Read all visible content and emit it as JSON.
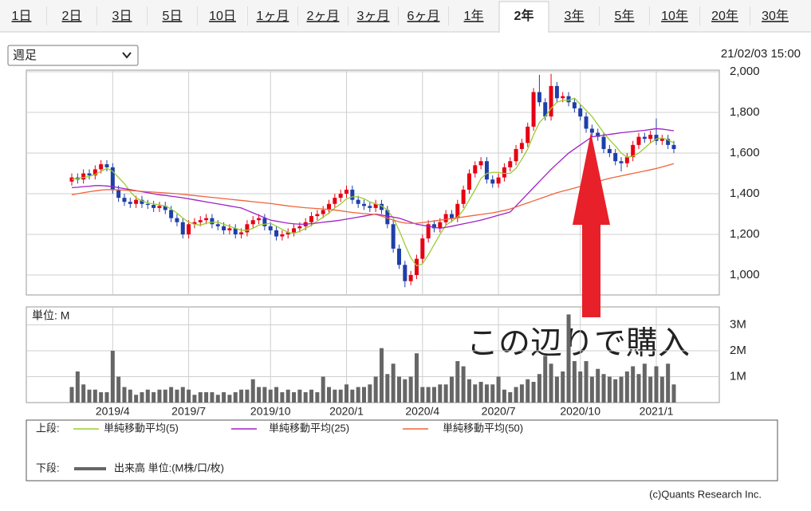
{
  "tabs": [
    "1日",
    "2日",
    "3日",
    "5日",
    "10日",
    "1ヶ月",
    "2ヶ月",
    "3ヶ月",
    "6ヶ月",
    "1年",
    "2年",
    "3年",
    "5年",
    "10年",
    "20年",
    "30年"
  ],
  "selected_tab": 10,
  "visited_tabs": [
    3
  ],
  "dropdown": "週足",
  "timestamp": "21/02/03 15:00",
  "copyright": "(c)Quants Research Inc.",
  "chart_data": [
    {
      "type": "candlestick",
      "legend_label": "上段:",
      "annotation": "この辺りで購入",
      "annotation_color": "#e8202a",
      "up_color": "#e60012",
      "down_color": "#1e3fa8",
      "open": [
        1460,
        1480,
        1470,
        1500,
        1490,
        1520,
        1545,
        1530,
        1420,
        1380,
        1360,
        1350,
        1370,
        1350,
        1345,
        1330,
        1340,
        1320,
        1280,
        1260,
        1200,
        1250,
        1260,
        1270,
        1280,
        1250,
        1240,
        1220,
        1230,
        1200,
        1210,
        1250,
        1270,
        1280,
        1240,
        1220,
        1190,
        1200,
        1210,
        1230,
        1240,
        1260,
        1290,
        1300,
        1320,
        1350,
        1380,
        1400,
        1420,
        1370,
        1350,
        1340,
        1330,
        1350,
        1320,
        1250,
        1130,
        1050,
        970,
        1000,
        1080,
        1180,
        1250,
        1230,
        1260,
        1300,
        1280,
        1350,
        1420,
        1500,
        1540,
        1560,
        1470,
        1450,
        1480,
        1530,
        1560,
        1620,
        1650,
        1730,
        1900,
        1850,
        1780,
        1930,
        1870,
        1880,
        1850,
        1820,
        1780,
        1720,
        1700,
        1680,
        1620,
        1600,
        1560,
        1550,
        1580,
        1640,
        1680,
        1670,
        1690,
        1660,
        1670,
        1640
      ],
      "high": [
        1500,
        1500,
        1520,
        1520,
        1540,
        1565,
        1565,
        1550,
        1440,
        1400,
        1380,
        1390,
        1390,
        1370,
        1365,
        1360,
        1360,
        1340,
        1300,
        1280,
        1270,
        1280,
        1290,
        1300,
        1300,
        1270,
        1260,
        1250,
        1250,
        1230,
        1270,
        1290,
        1300,
        1300,
        1260,
        1240,
        1220,
        1230,
        1250,
        1260,
        1280,
        1310,
        1320,
        1340,
        1370,
        1400,
        1420,
        1440,
        1440,
        1390,
        1370,
        1360,
        1370,
        1370,
        1340,
        1270,
        1150,
        1070,
        1020,
        1100,
        1200,
        1270,
        1270,
        1280,
        1320,
        1320,
        1370,
        1440,
        1520,
        1560,
        1580,
        1580,
        1490,
        1500,
        1550,
        1580,
        1640,
        1670,
        1750,
        1920,
        1985,
        1870,
        1990,
        1950,
        1900,
        1900,
        1870,
        1840,
        1800,
        1740,
        1720,
        1700,
        1640,
        1620,
        1580,
        1600,
        1660,
        1700,
        1700,
        1710,
        1770,
        1690,
        1690,
        1660
      ],
      "low": [
        1440,
        1450,
        1450,
        1470,
        1470,
        1500,
        1510,
        1400,
        1360,
        1340,
        1330,
        1330,
        1330,
        1325,
        1310,
        1310,
        1300,
        1260,
        1240,
        1180,
        1180,
        1230,
        1240,
        1250,
        1230,
        1220,
        1200,
        1200,
        1180,
        1180,
        1190,
        1230,
        1250,
        1220,
        1200,
        1170,
        1170,
        1180,
        1190,
        1210,
        1220,
        1240,
        1270,
        1280,
        1300,
        1330,
        1360,
        1380,
        1350,
        1330,
        1320,
        1310,
        1310,
        1300,
        1230,
        1110,
        1030,
        940,
        950,
        980,
        1060,
        1160,
        1210,
        1210,
        1240,
        1260,
        1260,
        1330,
        1400,
        1480,
        1520,
        1450,
        1430,
        1430,
        1460,
        1510,
        1540,
        1600,
        1630,
        1710,
        1830,
        1760,
        1760,
        1850,
        1850,
        1830,
        1800,
        1760,
        1700,
        1680,
        1660,
        1600,
        1580,
        1540,
        1510,
        1530,
        1560,
        1620,
        1650,
        1650,
        1640,
        1640,
        1620,
        1600
      ],
      "close": [
        1480,
        1470,
        1500,
        1490,
        1520,
        1545,
        1530,
        1420,
        1380,
        1360,
        1350,
        1370,
        1350,
        1345,
        1330,
        1340,
        1320,
        1280,
        1260,
        1200,
        1250,
        1260,
        1270,
        1280,
        1250,
        1240,
        1220,
        1230,
        1200,
        1210,
        1250,
        1270,
        1280,
        1240,
        1220,
        1190,
        1200,
        1210,
        1230,
        1240,
        1260,
        1290,
        1300,
        1320,
        1350,
        1380,
        1400,
        1420,
        1370,
        1350,
        1340,
        1330,
        1350,
        1320,
        1250,
        1130,
        1050,
        970,
        1000,
        1080,
        1180,
        1250,
        1230,
        1260,
        1300,
        1280,
        1350,
        1420,
        1500,
        1540,
        1560,
        1470,
        1450,
        1480,
        1530,
        1560,
        1620,
        1650,
        1730,
        1900,
        1850,
        1780,
        1930,
        1870,
        1880,
        1850,
        1820,
        1780,
        1720,
        1700,
        1680,
        1620,
        1600,
        1560,
        1550,
        1580,
        1640,
        1680,
        1670,
        1690,
        1660,
        1670,
        1640,
        1620
      ],
      "series": [
        {
          "name": "単純移動平均(5)",
          "color": "#9acd32",
          "values": [
            1470,
            1475,
            1480,
            1485,
            1495,
            1510,
            1525,
            1510,
            1480,
            1450,
            1410,
            1380,
            1365,
            1355,
            1350,
            1345,
            1340,
            1325,
            1305,
            1280,
            1260,
            1250,
            1245,
            1255,
            1260,
            1260,
            1250,
            1240,
            1230,
            1220,
            1220,
            1230,
            1245,
            1250,
            1255,
            1240,
            1225,
            1210,
            1205,
            1215,
            1230,
            1245,
            1265,
            1285,
            1305,
            1330,
            1350,
            1375,
            1385,
            1385,
            1375,
            1360,
            1350,
            1340,
            1320,
            1280,
            1220,
            1150,
            1085,
            1045,
            1055,
            1100,
            1150,
            1200,
            1245,
            1265,
            1285,
            1320,
            1370,
            1420,
            1475,
            1500,
            1505,
            1505,
            1500,
            1500,
            1525,
            1570,
            1620,
            1690,
            1750,
            1780,
            1820,
            1850,
            1860,
            1860,
            1870,
            1840,
            1810,
            1780,
            1740,
            1700,
            1665,
            1635,
            1600,
            1580,
            1585,
            1600,
            1625,
            1650,
            1670,
            1675,
            1665,
            1650
          ]
        },
        {
          "name": "単純移動平均(25)",
          "color": "#a020c8",
          "values": [
            1430,
            1432,
            1435,
            1437,
            1440,
            1440,
            1438,
            1435,
            1430,
            1425,
            1420,
            1415,
            1410,
            1405,
            1400,
            1395,
            1392,
            1388,
            1384,
            1380,
            1375,
            1370,
            1365,
            1360,
            1355,
            1350,
            1345,
            1340,
            1335,
            1330,
            1318,
            1306,
            1294,
            1282,
            1270,
            1265,
            1260,
            1255,
            1252,
            1250,
            1250,
            1253,
            1256,
            1260,
            1263,
            1266,
            1270,
            1275,
            1280,
            1285,
            1290,
            1295,
            1300,
            1295,
            1290,
            1285,
            1280,
            1270,
            1260,
            1250,
            1245,
            1240,
            1235,
            1230,
            1235,
            1240,
            1246,
            1252,
            1258,
            1264,
            1270,
            1278,
            1286,
            1294,
            1302,
            1310,
            1340,
            1370,
            1400,
            1430,
            1460,
            1490,
            1520,
            1547,
            1573,
            1600,
            1620,
            1640,
            1660,
            1680,
            1684,
            1688,
            1692,
            1696,
            1700,
            1703,
            1706,
            1709,
            1712,
            1716,
            1720,
            1718,
            1714,
            1710
          ]
        },
        {
          "name": "単純移動平均(50)",
          "color": "#f0643c",
          "values": [
            1395,
            1400,
            1405,
            1410,
            1414,
            1418,
            1420,
            1420,
            1419,
            1418,
            1416,
            1414,
            1412,
            1410,
            1408,
            1406,
            1404,
            1402,
            1400,
            1397,
            1394,
            1391,
            1388,
            1385,
            1382,
            1379,
            1376,
            1373,
            1370,
            1367,
            1364,
            1361,
            1358,
            1355,
            1352,
            1348,
            1344,
            1340,
            1337,
            1334,
            1331,
            1329,
            1327,
            1325,
            1323,
            1320,
            1316,
            1312,
            1308,
            1305,
            1302,
            1300,
            1298,
            1290,
            1280,
            1270,
            1262,
            1256,
            1254,
            1255,
            1258,
            1262,
            1266,
            1270,
            1274,
            1278,
            1282,
            1286,
            1290,
            1294,
            1298,
            1302,
            1306,
            1312,
            1318,
            1325,
            1335,
            1345,
            1355,
            1365,
            1375,
            1385,
            1395,
            1405,
            1413,
            1420,
            1428,
            1436,
            1444,
            1452,
            1460,
            1468,
            1476,
            1482,
            1488,
            1494,
            1500,
            1506,
            1512,
            1518,
            1524,
            1532,
            1540,
            1548
          ]
        }
      ],
      "ylim": [
        902,
        2008
      ],
      "yticks": [
        {
          "value": 1000,
          "label": "1,000"
        },
        {
          "value": 1200,
          "label": "1,200"
        },
        {
          "value": 1400,
          "label": "1,400"
        },
        {
          "value": 1600,
          "label": "1,600"
        },
        {
          "value": 1800,
          "label": "1,800"
        },
        {
          "value": 2000,
          "label": "2,000"
        }
      ],
      "grid": true
    },
    {
      "type": "bar",
      "legend_label": "下段:",
      "unit_label": "単位: M",
      "categories": [
        null,
        null,
        null,
        null,
        null,
        null,
        null,
        "2019/4",
        null,
        null,
        null,
        null,
        null,
        null,
        null,
        null,
        null,
        null,
        null,
        null,
        "2019/7",
        null,
        null,
        null,
        null,
        null,
        null,
        null,
        null,
        null,
        null,
        null,
        null,
        null,
        "2019/10",
        null,
        null,
        null,
        null,
        null,
        null,
        null,
        null,
        null,
        null,
        null,
        null,
        "2020/1",
        null,
        null,
        null,
        null,
        null,
        null,
        null,
        null,
        null,
        null,
        null,
        null,
        "2020/4",
        null,
        null,
        null,
        null,
        null,
        null,
        null,
        null,
        null,
        null,
        null,
        null,
        "2020/7",
        null,
        null,
        null,
        null,
        null,
        null,
        null,
        null,
        null,
        null,
        null,
        null,
        null,
        "2020/10",
        null,
        null,
        null,
        null,
        null,
        null,
        null,
        null,
        null,
        null,
        null,
        null,
        "2021/1",
        null,
        null,
        null
      ],
      "series": [
        {
          "name": "出来高 単位:(M株/口/枚)",
          "color": "#666666",
          "values": [
            0.6,
            1.2,
            0.7,
            0.5,
            0.5,
            0.4,
            0.4,
            2.0,
            1.0,
            0.6,
            0.5,
            0.3,
            0.4,
            0.5,
            0.4,
            0.5,
            0.5,
            0.6,
            0.5,
            0.6,
            0.5,
            0.3,
            0.4,
            0.4,
            0.4,
            0.3,
            0.4,
            0.3,
            0.4,
            0.5,
            0.5,
            0.9,
            0.6,
            0.6,
            0.5,
            0.6,
            0.4,
            0.5,
            0.4,
            0.5,
            0.4,
            0.5,
            0.4,
            1.0,
            0.6,
            0.5,
            0.5,
            0.7,
            0.5,
            0.6,
            0.6,
            0.7,
            1.0,
            2.1,
            1.1,
            1.5,
            1.0,
            0.9,
            1.0,
            1.9,
            0.6,
            0.6,
            0.6,
            0.7,
            0.7,
            1.0,
            1.6,
            1.4,
            0.9,
            0.7,
            0.8,
            0.7,
            0.7,
            1.0,
            0.5,
            0.4,
            0.6,
            0.7,
            0.9,
            0.8,
            1.1,
            1.8,
            1.5,
            1.0,
            1.2,
            3.4,
            1.6,
            1.2,
            1.6,
            1.0,
            1.3,
            1.1,
            1.0,
            0.9,
            1.0,
            1.2,
            1.4,
            1.1,
            1.5,
            1.0,
            1.4,
            1.0,
            1.5,
            0.7
          ]
        }
      ],
      "ylim": [
        0,
        3.69
      ],
      "yticks": [
        {
          "value": 1,
          "label": "1M"
        },
        {
          "value": 2,
          "label": "2M"
        },
        {
          "value": 3,
          "label": "3M"
        }
      ],
      "grid": true
    }
  ]
}
